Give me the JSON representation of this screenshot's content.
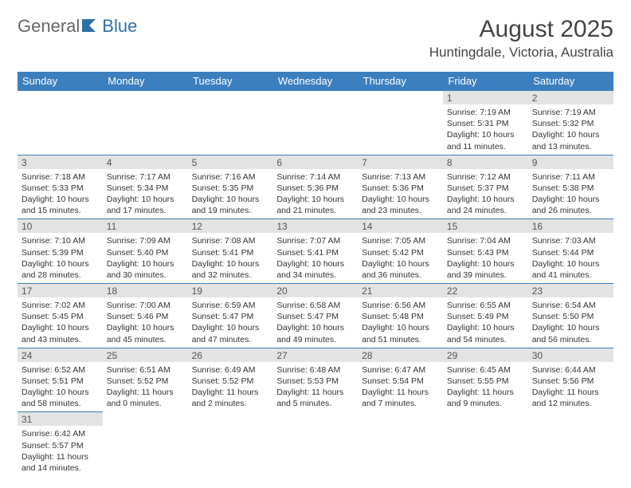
{
  "logo": {
    "text1": "General",
    "text2": "Blue"
  },
  "title": "August 2025",
  "location": "Huntingdale, Victoria, Australia",
  "header_bg": "#3b7fbf",
  "header_fg": "#ffffff",
  "daynum_bg": "#e3e3e3",
  "border_color": "#3b7fbf",
  "weekdays": [
    "Sunday",
    "Monday",
    "Tuesday",
    "Wednesday",
    "Thursday",
    "Friday",
    "Saturday"
  ],
  "weeks": [
    [
      {
        "empty": true
      },
      {
        "empty": true
      },
      {
        "empty": true
      },
      {
        "empty": true
      },
      {
        "empty": true
      },
      {
        "day": "1",
        "sunrise": "Sunrise: 7:19 AM",
        "sunset": "Sunset: 5:31 PM",
        "daylight": "Daylight: 10 hours and 11 minutes."
      },
      {
        "day": "2",
        "sunrise": "Sunrise: 7:19 AM",
        "sunset": "Sunset: 5:32 PM",
        "daylight": "Daylight: 10 hours and 13 minutes."
      }
    ],
    [
      {
        "day": "3",
        "sunrise": "Sunrise: 7:18 AM",
        "sunset": "Sunset: 5:33 PM",
        "daylight": "Daylight: 10 hours and 15 minutes."
      },
      {
        "day": "4",
        "sunrise": "Sunrise: 7:17 AM",
        "sunset": "Sunset: 5:34 PM",
        "daylight": "Daylight: 10 hours and 17 minutes."
      },
      {
        "day": "5",
        "sunrise": "Sunrise: 7:16 AM",
        "sunset": "Sunset: 5:35 PM",
        "daylight": "Daylight: 10 hours and 19 minutes."
      },
      {
        "day": "6",
        "sunrise": "Sunrise: 7:14 AM",
        "sunset": "Sunset: 5:36 PM",
        "daylight": "Daylight: 10 hours and 21 minutes."
      },
      {
        "day": "7",
        "sunrise": "Sunrise: 7:13 AM",
        "sunset": "Sunset: 5:36 PM",
        "daylight": "Daylight: 10 hours and 23 minutes."
      },
      {
        "day": "8",
        "sunrise": "Sunrise: 7:12 AM",
        "sunset": "Sunset: 5:37 PM",
        "daylight": "Daylight: 10 hours and 24 minutes."
      },
      {
        "day": "9",
        "sunrise": "Sunrise: 7:11 AM",
        "sunset": "Sunset: 5:38 PM",
        "daylight": "Daylight: 10 hours and 26 minutes."
      }
    ],
    [
      {
        "day": "10",
        "sunrise": "Sunrise: 7:10 AM",
        "sunset": "Sunset: 5:39 PM",
        "daylight": "Daylight: 10 hours and 28 minutes."
      },
      {
        "day": "11",
        "sunrise": "Sunrise: 7:09 AM",
        "sunset": "Sunset: 5:40 PM",
        "daylight": "Daylight: 10 hours and 30 minutes."
      },
      {
        "day": "12",
        "sunrise": "Sunrise: 7:08 AM",
        "sunset": "Sunset: 5:41 PM",
        "daylight": "Daylight: 10 hours and 32 minutes."
      },
      {
        "day": "13",
        "sunrise": "Sunrise: 7:07 AM",
        "sunset": "Sunset: 5:41 PM",
        "daylight": "Daylight: 10 hours and 34 minutes."
      },
      {
        "day": "14",
        "sunrise": "Sunrise: 7:05 AM",
        "sunset": "Sunset: 5:42 PM",
        "daylight": "Daylight: 10 hours and 36 minutes."
      },
      {
        "day": "15",
        "sunrise": "Sunrise: 7:04 AM",
        "sunset": "Sunset: 5:43 PM",
        "daylight": "Daylight: 10 hours and 39 minutes."
      },
      {
        "day": "16",
        "sunrise": "Sunrise: 7:03 AM",
        "sunset": "Sunset: 5:44 PM",
        "daylight": "Daylight: 10 hours and 41 minutes."
      }
    ],
    [
      {
        "day": "17",
        "sunrise": "Sunrise: 7:02 AM",
        "sunset": "Sunset: 5:45 PM",
        "daylight": "Daylight: 10 hours and 43 minutes."
      },
      {
        "day": "18",
        "sunrise": "Sunrise: 7:00 AM",
        "sunset": "Sunset: 5:46 PM",
        "daylight": "Daylight: 10 hours and 45 minutes."
      },
      {
        "day": "19",
        "sunrise": "Sunrise: 6:59 AM",
        "sunset": "Sunset: 5:47 PM",
        "daylight": "Daylight: 10 hours and 47 minutes."
      },
      {
        "day": "20",
        "sunrise": "Sunrise: 6:58 AM",
        "sunset": "Sunset: 5:47 PM",
        "daylight": "Daylight: 10 hours and 49 minutes."
      },
      {
        "day": "21",
        "sunrise": "Sunrise: 6:56 AM",
        "sunset": "Sunset: 5:48 PM",
        "daylight": "Daylight: 10 hours and 51 minutes."
      },
      {
        "day": "22",
        "sunrise": "Sunrise: 6:55 AM",
        "sunset": "Sunset: 5:49 PM",
        "daylight": "Daylight: 10 hours and 54 minutes."
      },
      {
        "day": "23",
        "sunrise": "Sunrise: 6:54 AM",
        "sunset": "Sunset: 5:50 PM",
        "daylight": "Daylight: 10 hours and 56 minutes."
      }
    ],
    [
      {
        "day": "24",
        "sunrise": "Sunrise: 6:52 AM",
        "sunset": "Sunset: 5:51 PM",
        "daylight": "Daylight: 10 hours and 58 minutes."
      },
      {
        "day": "25",
        "sunrise": "Sunrise: 6:51 AM",
        "sunset": "Sunset: 5:52 PM",
        "daylight": "Daylight: 11 hours and 0 minutes."
      },
      {
        "day": "26",
        "sunrise": "Sunrise: 6:49 AM",
        "sunset": "Sunset: 5:52 PM",
        "daylight": "Daylight: 11 hours and 2 minutes."
      },
      {
        "day": "27",
        "sunrise": "Sunrise: 6:48 AM",
        "sunset": "Sunset: 5:53 PM",
        "daylight": "Daylight: 11 hours and 5 minutes."
      },
      {
        "day": "28",
        "sunrise": "Sunrise: 6:47 AM",
        "sunset": "Sunset: 5:54 PM",
        "daylight": "Daylight: 11 hours and 7 minutes."
      },
      {
        "day": "29",
        "sunrise": "Sunrise: 6:45 AM",
        "sunset": "Sunset: 5:55 PM",
        "daylight": "Daylight: 11 hours and 9 minutes."
      },
      {
        "day": "30",
        "sunrise": "Sunrise: 6:44 AM",
        "sunset": "Sunset: 5:56 PM",
        "daylight": "Daylight: 11 hours and 12 minutes."
      }
    ],
    [
      {
        "day": "31",
        "sunrise": "Sunrise: 6:42 AM",
        "sunset": "Sunset: 5:57 PM",
        "daylight": "Daylight: 11 hours and 14 minutes."
      },
      {
        "empty": true
      },
      {
        "empty": true
      },
      {
        "empty": true
      },
      {
        "empty": true
      },
      {
        "empty": true
      },
      {
        "empty": true
      }
    ]
  ]
}
